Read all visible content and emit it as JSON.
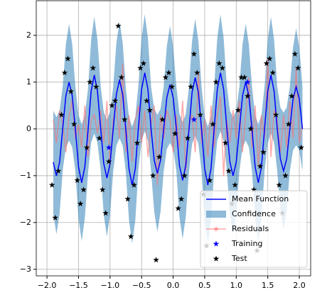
{
  "chart_data": {
    "type": "line",
    "xlim": [
      -2.17,
      2.18
    ],
    "ylim": [
      -3.14,
      2.74
    ],
    "xticks": [
      {
        "value": -2.0,
        "label": "−2.0"
      },
      {
        "value": -1.5,
        "label": "−1.5"
      },
      {
        "value": -1.0,
        "label": "−1.0"
      },
      {
        "value": -0.5,
        "label": "−0.5"
      },
      {
        "value": 0.0,
        "label": "0.0"
      },
      {
        "value": 0.5,
        "label": "0.5"
      },
      {
        "value": 1.0,
        "label": "1.0"
      },
      {
        "value": 1.5,
        "label": "1.5"
      },
      {
        "value": 2.0,
        "label": "2.0"
      }
    ],
    "yticks": [
      {
        "value": -3,
        "label": "−3"
      },
      {
        "value": -2,
        "label": "−2"
      },
      {
        "value": -1,
        "label": "−1"
      },
      0,
      1,
      2
    ],
    "grid": true,
    "legend": "lower right",
    "x": [
      -1.9,
      -1.85,
      -1.8,
      -1.75,
      -1.7,
      -1.65,
      -1.6,
      -1.55,
      -1.5,
      -1.45,
      -1.4,
      -1.35,
      -1.3,
      -1.25,
      -1.2,
      -1.15,
      -1.1,
      -1.05,
      -1.0,
      -0.95,
      -0.9,
      -0.85,
      -0.8,
      -0.75,
      -0.7,
      -0.65,
      -0.6,
      -0.55,
      -0.5,
      -0.45,
      -0.4,
      -0.35,
      -0.3,
      -0.25,
      -0.2,
      -0.15,
      -0.1,
      -0.05,
      0.0,
      0.05,
      0.1,
      0.15,
      0.2,
      0.25,
      0.3,
      0.35,
      0.4,
      0.45,
      0.5,
      0.55,
      0.6,
      0.65,
      0.7,
      0.75,
      0.8,
      0.85,
      0.9,
      0.95,
      1.0,
      1.05,
      1.1,
      1.15,
      1.2,
      1.25,
      1.3,
      1.35,
      1.4,
      1.45,
      1.5,
      1.55,
      1.6,
      1.65,
      1.7,
      1.75,
      1.8,
      1.85,
      1.9,
      1.95,
      2.0,
      2.05
    ],
    "series": [
      {
        "name": "Mean Function",
        "color": "#0000ff",
        "values": [
          -0.71,
          -1.0,
          -0.71,
          0.02,
          0.71,
          1.0,
          0.71,
          0.0,
          -0.81,
          -1.15,
          -0.81,
          -0.05,
          0.81,
          1.15,
          0.81,
          0.03,
          -0.74,
          -1.05,
          -0.74,
          0.0,
          0.74,
          1.05,
          0.74,
          -0.02,
          -0.85,
          -1.2,
          -0.85,
          0.04,
          0.85,
          1.2,
          0.85,
          0.0,
          -0.67,
          -0.95,
          -0.67,
          0.0,
          0.67,
          0.95,
          0.67,
          0.02,
          -0.78,
          -1.1,
          -0.78,
          -0.03,
          0.78,
          1.1,
          0.78,
          0.0,
          -0.85,
          -1.2,
          -0.85,
          0.0,
          0.85,
          1.2,
          0.85,
          0.03,
          -0.71,
          -1.0,
          -0.71,
          0.0,
          0.71,
          1.0,
          0.71,
          0.0,
          -0.81,
          -1.15,
          -0.81,
          0.02,
          0.81,
          1.15,
          0.81,
          0.0,
          -0.64,
          -0.9,
          -0.64,
          0.0,
          0.64,
          0.9,
          0.64,
          0.0
        ]
      },
      {
        "name": "Confidence",
        "color": "#1f77b4",
        "errors": [
          1.1,
          1.25,
          1.1,
          0.9,
          1.1,
          1.25,
          1.1,
          0.9,
          1.1,
          1.25,
          1.1,
          0.9,
          1.1,
          1.25,
          1.1,
          0.9,
          1.1,
          1.25,
          1.1,
          0.9,
          1.1,
          1.25,
          1.1,
          0.9,
          1.1,
          1.25,
          1.1,
          0.9,
          1.1,
          1.25,
          1.1,
          0.9,
          1.1,
          1.25,
          1.1,
          0.9,
          1.1,
          1.25,
          1.1,
          0.9,
          1.1,
          1.25,
          1.1,
          0.9,
          1.1,
          1.25,
          1.1,
          0.9,
          1.1,
          1.25,
          1.1,
          0.9,
          1.1,
          1.25,
          1.1,
          0.9,
          1.1,
          1.25,
          1.1,
          0.9,
          1.1,
          1.25,
          1.1,
          0.9,
          1.1,
          1.25,
          1.1,
          0.9,
          1.1,
          1.25,
          1.1,
          0.9,
          1.1,
          1.25,
          1.1,
          0.9,
          1.1,
          1.25,
          1.1,
          0.9
        ]
      },
      {
        "name": "Residuals",
        "color": "#ff6f6f",
        "values": [
          0.2,
          -0.3,
          0.4,
          0.1,
          -0.5,
          0.3,
          0.6,
          -0.2,
          0.1,
          -0.4,
          0.5,
          -0.6,
          0.2,
          0.3,
          -0.1,
          0.4,
          -0.3,
          0.6,
          -0.8,
          0.2,
          0.5,
          -0.2,
          1.4,
          -0.5,
          0.3,
          -0.7,
          0.2,
          0.5,
          -0.3,
          0.4,
          -0.6,
          0.1,
          0.5,
          -1.2,
          0.3,
          -0.2,
          0.4,
          0.2,
          -0.5,
          0.3,
          -0.4,
          0.6,
          -0.9,
          0.1,
          0.3,
          -0.5,
          1.2,
          -0.3,
          0.2,
          -0.6,
          0.5,
          -0.4,
          0.3,
          0.7,
          -1.0,
          0.2,
          -0.3,
          0.4,
          -0.2,
          0.6,
          -0.5,
          0.3,
          1.1,
          -0.4,
          0.5,
          -0.8,
          0.3,
          -0.2,
          1.5,
          -0.6,
          0.4,
          0.2,
          -0.5,
          0.3,
          -0.4,
          0.6,
          -0.2,
          1.3,
          -0.3,
          0.1
        ]
      },
      {
        "name": "Training",
        "color": "#0000ff",
        "x": [
          -1.02,
          0.33,
          1.18
        ],
        "values": [
          -0.4,
          0.2,
          1.0
        ]
      },
      {
        "name": "Test",
        "color": "#000000",
        "x": [
          -1.92,
          -1.87,
          -1.82,
          -1.77,
          -1.72,
          -1.67,
          -1.62,
          -1.57,
          -1.52,
          -1.47,
          -1.42,
          -1.37,
          -1.32,
          -1.27,
          -1.22,
          -1.17,
          -1.12,
          -1.07,
          -1.02,
          -0.97,
          -0.92,
          -0.87,
          -0.82,
          -0.77,
          -0.72,
          -0.67,
          -0.62,
          -0.57,
          -0.52,
          -0.47,
          -0.42,
          -0.37,
          -0.32,
          -0.27,
          -0.22,
          -0.17,
          -0.12,
          -0.07,
          -0.02,
          0.03,
          0.08,
          0.13,
          0.18,
          0.23,
          0.28,
          0.33,
          0.38,
          0.43,
          0.48,
          0.53,
          0.58,
          0.63,
          0.68,
          0.73,
          0.78,
          0.83,
          0.88,
          0.93,
          0.98,
          1.03,
          1.08,
          1.13,
          1.18,
          1.23,
          1.28,
          1.33,
          1.38,
          1.43,
          1.48,
          1.53,
          1.58,
          1.63,
          1.68,
          1.73,
          1.78,
          1.83,
          1.88,
          1.93,
          1.98,
          2.03
        ],
        "values": [
          -1.2,
          -1.9,
          -0.9,
          0.3,
          1.2,
          1.5,
          0.8,
          0.1,
          -1.1,
          -1.6,
          -1.3,
          -0.4,
          1.0,
          1.3,
          0.9,
          -0.2,
          -1.3,
          -1.8,
          -0.7,
          0.5,
          0.6,
          2.2,
          1.1,
          0.2,
          -1.5,
          -2.3,
          -1.2,
          -0.3,
          1.3,
          1.4,
          0.6,
          0.4,
          -1.0,
          -2.8,
          -0.6,
          0.2,
          1.1,
          1.2,
          0.9,
          -0.1,
          -1.7,
          -1.5,
          -1.0,
          -0.2,
          0.9,
          1.6,
          1.2,
          0.3,
          -1.4,
          -2.5,
          -1.1,
          0.1,
          1.0,
          1.4,
          1.3,
          -0.3,
          -0.9,
          -1.6,
          -1.2,
          0.4,
          1.1,
          1.1,
          0.7,
          0.0,
          -1.3,
          -2.6,
          -0.8,
          -0.5,
          1.4,
          1.5,
          1.2,
          0.3,
          -1.2,
          -1.8,
          -1.0,
          0.1,
          0.7,
          1.6,
          1.3,
          -0.4
        ]
      }
    ]
  }
}
